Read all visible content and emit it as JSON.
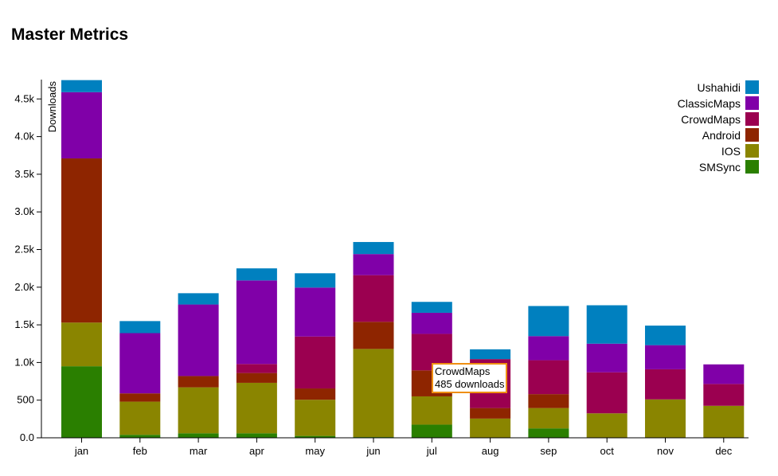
{
  "title": "Master Metrics",
  "chart_data": {
    "type": "bar",
    "stacked": true,
    "title": "Master Metrics",
    "xlabel": "",
    "ylabel": "Downloads",
    "ylim": [
      0,
      4750
    ],
    "yticks": [
      0,
      500,
      1000,
      1500,
      2000,
      2500,
      3000,
      3500,
      4000,
      4500
    ],
    "ytick_labels": [
      "0.0",
      "500",
      "1.0k",
      "1.5k",
      "2.0k",
      "2.5k",
      "3.0k",
      "3.5k",
      "4.0k",
      "4.5k"
    ],
    "categories": [
      "jan",
      "feb",
      "mar",
      "apr",
      "may",
      "jun",
      "jul",
      "aug",
      "sep",
      "oct",
      "nov",
      "dec"
    ],
    "legend_position": "top-right",
    "series": [
      {
        "name": "SMSync",
        "color": "#2a7f00",
        "values": [
          950,
          40,
          60,
          60,
          25,
          10,
          175,
          0,
          125,
          0,
          0,
          0
        ]
      },
      {
        "name": "IOS",
        "color": "#8a8500",
        "values": [
          580,
          440,
          610,
          670,
          480,
          1170,
          375,
          255,
          270,
          325,
          510,
          425
        ]
      },
      {
        "name": "Android",
        "color": "#8e2500",
        "values": [
          2180,
          110,
          150,
          130,
          150,
          360,
          345,
          140,
          185,
          0,
          0,
          0
        ]
      },
      {
        "name": "CrowdMaps",
        "color": "#9b0050",
        "values": [
          0,
          0,
          0,
          120,
          690,
          620,
          485,
          650,
          450,
          545,
          400,
          290
        ]
      },
      {
        "name": "ClassicMaps",
        "color": "#8000a8",
        "values": [
          880,
          800,
          950,
          1110,
          650,
          280,
          280,
          0,
          320,
          380,
          320,
          260
        ]
      },
      {
        "name": "Ushahidi",
        "color": "#0080bf",
        "values": [
          160,
          160,
          150,
          160,
          190,
          160,
          145,
          130,
          400,
          510,
          260,
          0
        ]
      }
    ],
    "legend_order": [
      "Ushahidi",
      "ClassicMaps",
      "CrowdMaps",
      "Android",
      "IOS",
      "SMSync"
    ]
  },
  "tooltip": {
    "series": "CrowdMaps",
    "text": "485 downloads"
  }
}
